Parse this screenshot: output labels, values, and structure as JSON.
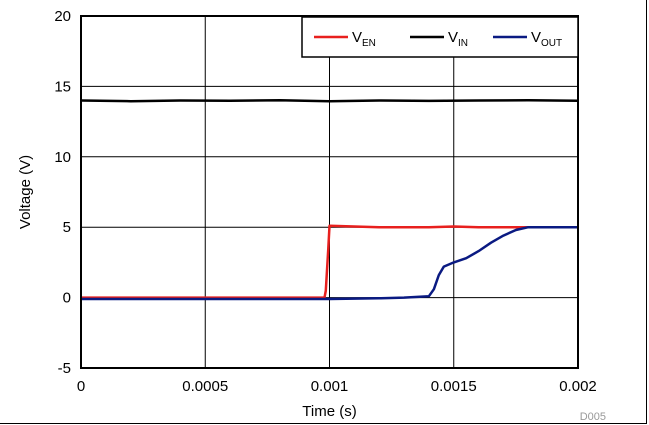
{
  "chart_data": {
    "type": "line",
    "title": "",
    "xlabel": "Time (s)",
    "ylabel": "Voltage (V)",
    "xlim": [
      0,
      0.002
    ],
    "ylim": [
      -5,
      20
    ],
    "grid": true,
    "legend_placement": "top-right",
    "figure_id": "D005",
    "x_ticks": [
      {
        "value": 0,
        "label": "0"
      },
      {
        "value": 0.0005,
        "label": "0.0005"
      },
      {
        "value": 0.001,
        "label": "0.001"
      },
      {
        "value": 0.0015,
        "label": "0.0015"
      },
      {
        "value": 0.002,
        "label": "0.002"
      }
    ],
    "y_ticks": [
      {
        "value": -5,
        "label": "-5"
      },
      {
        "value": 0,
        "label": "0"
      },
      {
        "value": 5,
        "label": "5"
      },
      {
        "value": 10,
        "label": "10"
      },
      {
        "value": 15,
        "label": "15"
      },
      {
        "value": 20,
        "label": "20"
      }
    ],
    "series": [
      {
        "name": "V",
        "subscript": "EN",
        "color": "#e8201e",
        "x": [
          0,
          0.0002,
          0.0004,
          0.0006,
          0.0008,
          0.00098,
          0.000985,
          0.000995,
          0.001,
          0.0012,
          0.0014,
          0.0015,
          0.0016,
          0.0018,
          0.002
        ],
        "y": [
          0,
          0,
          0,
          0,
          0,
          0,
          0.5,
          3.5,
          5.1,
          5.0,
          5.0,
          5.05,
          5.0,
          5.0,
          5.0
        ]
      },
      {
        "name": "V",
        "subscript": "IN",
        "color": "#000000",
        "x": [
          0,
          0.0002,
          0.0004,
          0.0006,
          0.0008,
          0.001,
          0.0012,
          0.0014,
          0.0016,
          0.0018,
          0.002
        ],
        "y": [
          14.0,
          13.95,
          14.0,
          13.98,
          14.02,
          13.95,
          14.0,
          13.97,
          14.0,
          14.02,
          13.98
        ]
      },
      {
        "name": "V",
        "subscript": "OUT",
        "color": "#0a1a82",
        "x": [
          0,
          0.0002,
          0.0004,
          0.0006,
          0.0008,
          0.001,
          0.0012,
          0.0013,
          0.0014,
          0.00142,
          0.00144,
          0.00146,
          0.0015,
          0.00155,
          0.0016,
          0.00165,
          0.0017,
          0.00175,
          0.0018,
          0.00185,
          0.0019,
          0.002
        ],
        "y": [
          -0.1,
          -0.1,
          -0.1,
          -0.1,
          -0.1,
          -0.1,
          -0.05,
          0,
          0.1,
          0.6,
          1.6,
          2.2,
          2.5,
          2.8,
          3.3,
          3.9,
          4.4,
          4.8,
          5.0,
          5.0,
          5.0,
          5.0
        ]
      }
    ]
  }
}
